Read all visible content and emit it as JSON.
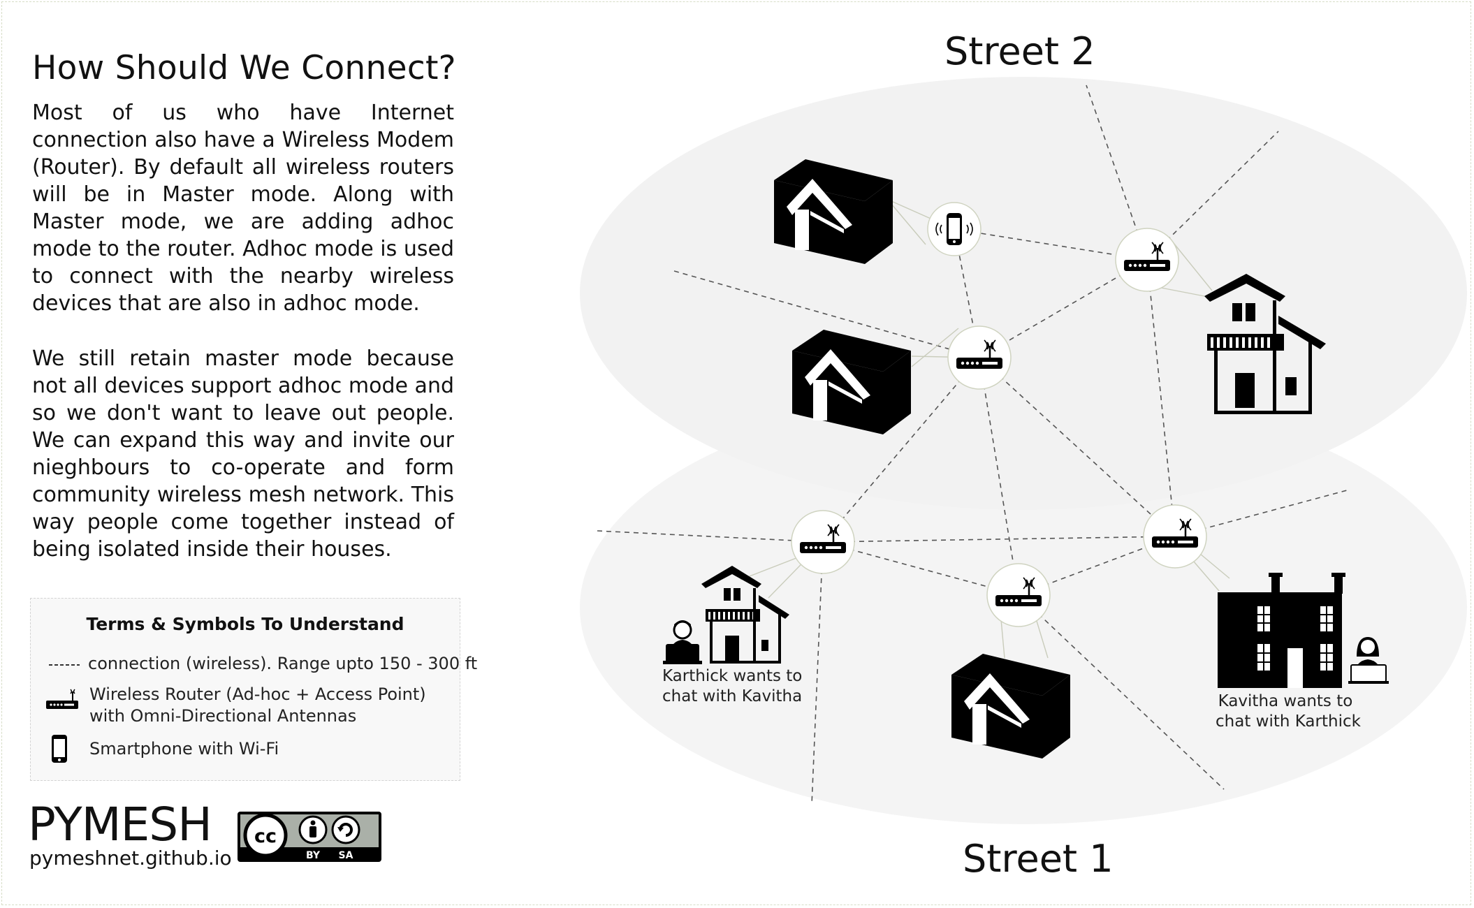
{
  "left_panel": {
    "title": "How Should We Connect?",
    "paragraph_1": "Most of us who have Internet connection also have a Wireless Modem (Router). By default all wireless routers will be in Master mode. Along with Master mode, we are adding adhoc mode to the router. Adhoc mode is used to connect with the nearby wireless devices that are also in adhoc mode.",
    "paragraph_2": "We still retain master mode because not all devices support adhoc mode and so we don't want to leave out people. We can expand this way and invite our nieghbours to co-operate and form community wireless mesh network. This way people come together instead of being isolated inside their houses."
  },
  "legend": {
    "title": "Terms & Symbols To Understand",
    "items": [
      {
        "symbol": "dashed-line",
        "text": "connection (wireless). Range upto 150 - 300 ft"
      },
      {
        "symbol": "router-icon",
        "text": "Wireless Router (Ad-hoc + Access Point)",
        "text_2": "with Omni-Directional Antennas"
      },
      {
        "symbol": "smartphone-icon",
        "text": "Smartphone with Wi-Fi"
      }
    ]
  },
  "branding": {
    "logo": "PYMESH",
    "url": "pymeshnet.github.io",
    "license_badge": {
      "cc": "cc",
      "by": "BY",
      "sa": "SA"
    }
  },
  "diagram": {
    "street_top": "Street 2",
    "street_bottom": "Street 1",
    "caption_left": [
      "Karthick wants to",
      "chat with Kavitha"
    ],
    "caption_right": [
      "Kavitha wants to",
      "chat with Karthick"
    ]
  },
  "colors": {
    "zone_fill": "#f2f2f2",
    "dashed_line": "#555555",
    "icon": "#000000",
    "node_border": "#cfd3c0"
  }
}
